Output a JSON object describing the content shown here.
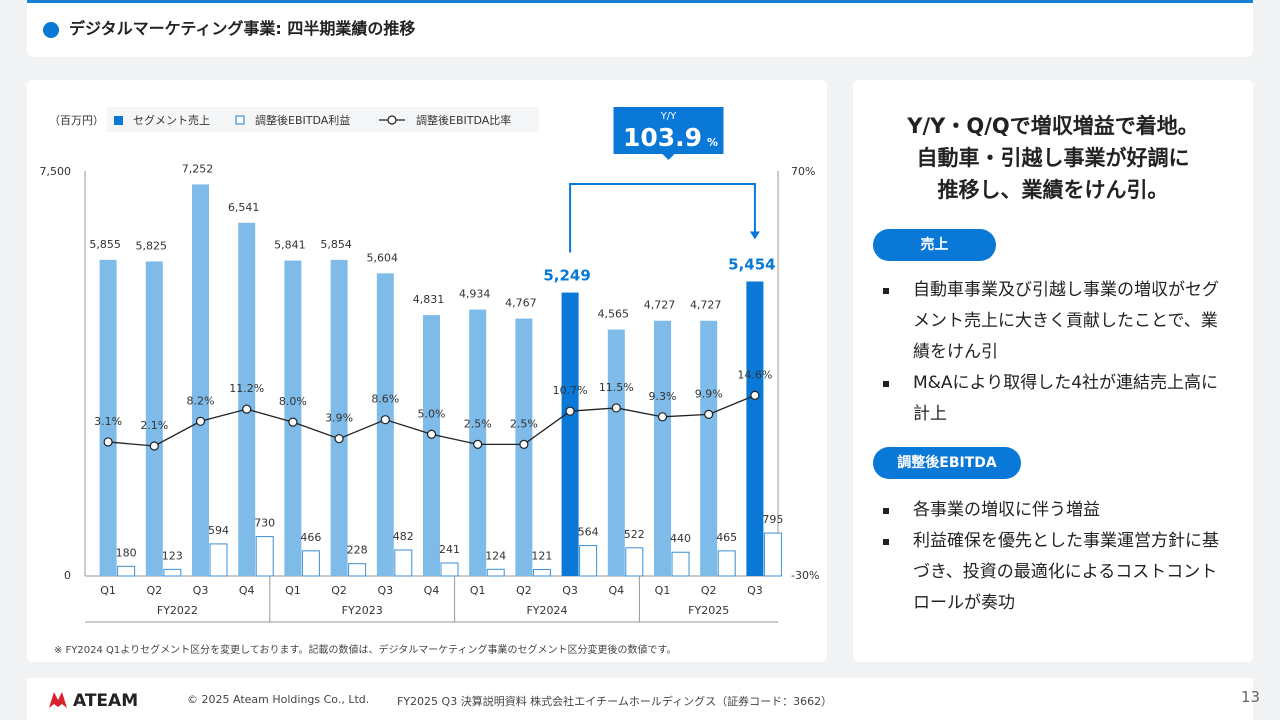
{
  "header": {
    "title": "デジタルマーケティング事業: 四半期業績の推移"
  },
  "chart_data": {
    "type": "bar",
    "unit_label": "（百万円）",
    "legend": [
      "セグメント売上",
      "調整後EBITDA利益",
      "調整後EBITDA比率"
    ],
    "categories": [
      "Q1",
      "Q2",
      "Q3",
      "Q4",
      "Q1",
      "Q2",
      "Q3",
      "Q4",
      "Q1",
      "Q2",
      "Q3",
      "Q4",
      "Q1",
      "Q2",
      "Q3"
    ],
    "groups": [
      "FY2022",
      "FY2023",
      "FY2024",
      "FY2025"
    ],
    "series": [
      {
        "name": "セグメント売上",
        "values": [
          5855,
          5825,
          7252,
          6541,
          5841,
          5854,
          5604,
          4831,
          4934,
          4767,
          5249,
          4565,
          4727,
          4727,
          5454
        ],
        "labels": [
          "5,855",
          "5,825",
          "7,252",
          "6,541",
          "5,841",
          "5,854",
          "5,604",
          "4,831",
          "4,934",
          "4,767",
          "5,249",
          "4,565",
          "4,727",
          "4,727",
          "5,454"
        ]
      },
      {
        "name": "調整後EBITDA利益",
        "values": [
          180,
          123,
          594,
          730,
          466,
          228,
          482,
          241,
          124,
          121,
          564,
          522,
          440,
          465,
          795
        ],
        "labels": [
          "180",
          "123",
          "594",
          "730",
          "466",
          "228",
          "482",
          "241",
          "124",
          "121",
          "564",
          "522",
          "440",
          "465",
          "795"
        ]
      },
      {
        "name": "調整後EBITDA比率",
        "values": [
          3.1,
          2.1,
          8.2,
          11.2,
          8.0,
          3.9,
          8.6,
          5.0,
          2.5,
          2.5,
          10.7,
          11.5,
          9.3,
          9.9,
          14.6
        ],
        "labels": [
          "3.1%",
          "2.1%",
          "8.2%",
          "11.2%",
          "8.0%",
          "3.9%",
          "8.6%",
          "5.0%",
          "2.5%",
          "2.5%",
          "10.7%",
          "11.5%",
          "9.3%",
          "9.9%",
          "14.6%"
        ]
      }
    ],
    "highlighted": [
      10,
      14
    ],
    "ylim": [
      0,
      7500
    ],
    "y_ticks": [
      "0",
      "7,500"
    ],
    "y2lim": [
      -30,
      70
    ],
    "y2_ticks": [
      "-30%",
      "70%"
    ],
    "yoy_callout": {
      "label": "Y/Y",
      "value": "103.9",
      "unit": "%"
    },
    "colors": {
      "sales": "#7fbbe8",
      "sales_highlight": "#0a78d6",
      "ebitda_stroke": "#3c8fd6",
      "ratio_line": "#222222"
    },
    "note": "※  FY2024 Q1よりセグメント区分を変更しております。記載の数値は、デジタルマーケティング事業のセグメント区分変更後の数値です。"
  },
  "summary": {
    "headline": [
      "Y/Y・Q/Qで増収増益で着地。",
      "自動車・引越し事業が好調に",
      "推移し、業績をけん引。"
    ],
    "sections": [
      {
        "label": "売上",
        "bullets": [
          "自動車事業及び引越し事業の増収がセグメント売上に大きく貢献したことで、業績をけん引",
          "M&Aにより取得した4社が連結売上高に計上"
        ]
      },
      {
        "label": "調整後EBITDA",
        "bullets": [
          "各事業の増収に伴う増益",
          "利益確保を優先とした事業運営方針に基づき、投資の最適化によるコストコントロールが奏功"
        ]
      }
    ]
  },
  "footer": {
    "logo_text": "ATEAM",
    "copyright": "© 2025 Ateam Holdings Co., Ltd.",
    "doc": "FY2025 Q3 決算説明資料 株式会社エイチームホールディングス（証券コード：3662）",
    "page": "13"
  }
}
